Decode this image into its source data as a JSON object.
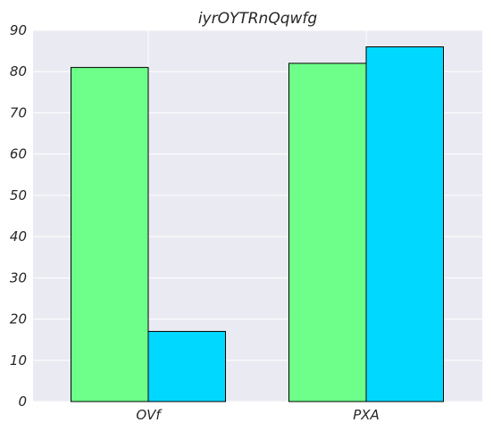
{
  "chart_data": {
    "type": "bar",
    "title": "iyrOYTRnQqwfg",
    "xlabel": "",
    "ylabel": "",
    "categories": [
      "OVf",
      "PXA"
    ],
    "series": [
      {
        "values": [
          81,
          82
        ],
        "color": "#6dff8a"
      },
      {
        "values": [
          17,
          86
        ],
        "color": "#00d8ff"
      }
    ],
    "ylim": [
      0,
      90
    ],
    "yticks": [
      "0",
      "10",
      "20",
      "30",
      "40",
      "50",
      "60",
      "70",
      "80",
      "90"
    ],
    "grid": true,
    "background": "#eaeaf2",
    "grid_color": "#ffffff",
    "bar_edge_color": "#000000"
  }
}
